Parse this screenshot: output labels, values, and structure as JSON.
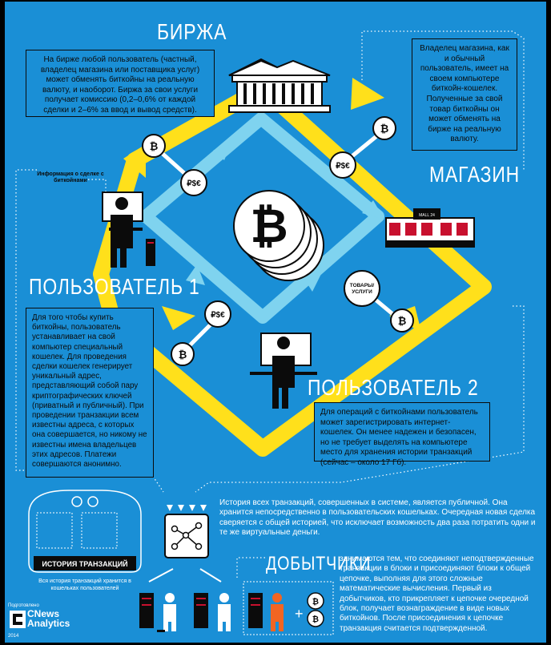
{
  "titles": {
    "exchange": "БИРЖА",
    "store": "МАГАЗИН",
    "user1": "ПОЛЬЗОВАТЕЛЬ 1",
    "user2": "ПОЛЬЗОВАТЕЛЬ 2",
    "miners": "ДОБЫТЧИКИ"
  },
  "texts": {
    "exchange": "На бирже любой пользователь (частный, владелец магазина или поставщика услуг) может обменять биткойны на реальную валюту, и наоборот. Биржа за свои услуги получает комиссию (0,2–0,6% от каждой сделки и 2–6% за ввод и вывод средств).",
    "store": "Владелец магазина, как и обычный пользователь, имеет на своем компьютере биткойн-кошелек. Полученные за свой товар биткойны он может обменять на бирже на реальную валюту.",
    "user1": "Для того чтобы купить биткойны, пользователь устанавливает на свой компьютер специальный кошелек. Для проведения сделки кошелек генерирует уникальный адрес, представляющий собой пару криптографических ключей (приватный и публичный). При проведении транзакции всем известны адреса, с которых она совершается, но никому не известны имена владельцев этих адресов. Платежи совершаются анонимно.",
    "user2": "Для операций с биткойнами пользователь может зарегистрировать интернет-кошелек. Он менее надежен и безопасен, но не требует выделять на компьютере место для хранения истории транзакций (сейчас – около 17 Гб).",
    "history": "История всех транзакций, совершенных в системе, является публичной. Она хранится непосредственно в пользовательских кошельках. Очередная новая сделка сверяется с общей историей, что исключает возможность два раза потратить одни и те же виртуальные деньги.",
    "miners": "занимаются тем, что соединяют неподтвержденные транзакции в блоки и присоединяют блоки к общей цепочке, выполняя для этого сложные математические вычисления. Первый из добытчиков, кто прикрепляет к цепочке очередной блок, получает вознаграждение в виде новых биткойнов. После присоединения к цепочке транзакция считается подтвержденной."
  },
  "labels": {
    "deal_info": "Информация о сделке с биткойнами",
    "history": "ИСТОРИЯ ТРАНЗАКЦИЙ",
    "history_caption": "Вся история транзакций хранится в кошельках пользователей"
  },
  "diagram": {
    "fiat_symbols": "₽$€",
    "goods_line1": "ТОВАРЫ/",
    "goods_line2": "УСЛУГИ",
    "store_sign": "MALL 24"
  },
  "credits": {
    "prepared": "Подготовлено",
    "brand_line1": "CNews",
    "brand_line2": "Analytics",
    "year": "2014"
  },
  "colors": {
    "background": "#1a8fd6",
    "ring": "#ffe01b",
    "inner_ring": "#7fd3ef",
    "accent": "#c8102e",
    "miner_highlight": "#f26522"
  }
}
